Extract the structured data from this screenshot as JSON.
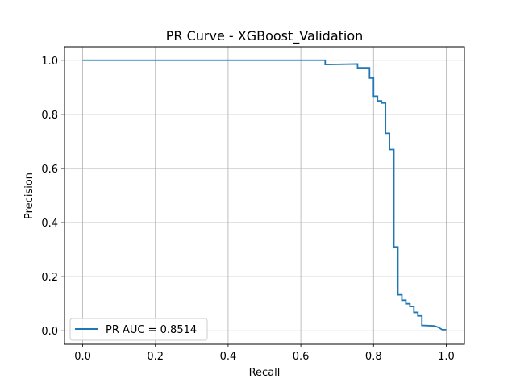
{
  "chart_data": {
    "type": "line",
    "title": "PR Curve - XGBoost_Validation",
    "xlabel": "Recall",
    "ylabel": "Precision",
    "xlim": [
      -0.05,
      1.05
    ],
    "ylim": [
      -0.05,
      1.05
    ],
    "xticks": [
      0.0,
      0.2,
      0.4,
      0.6,
      0.8,
      1.0
    ],
    "yticks": [
      0.0,
      0.2,
      0.4,
      0.6,
      0.8,
      1.0
    ],
    "xtick_labels": [
      "0.0",
      "0.2",
      "0.4",
      "0.6",
      "0.8",
      "1.0"
    ],
    "ytick_labels": [
      "0.0",
      "0.2",
      "0.4",
      "0.6",
      "0.8",
      "1.0"
    ],
    "grid": true,
    "legend_position": "lower-left",
    "series": [
      {
        "name": "PR AUC = 0.8514",
        "color": "#1f77b4",
        "x": [
          0.0,
          0.667,
          0.667,
          0.756,
          0.756,
          0.789,
          0.789,
          0.8,
          0.8,
          0.811,
          0.811,
          0.822,
          0.822,
          0.833,
          0.833,
          0.844,
          0.844,
          0.856,
          0.856,
          0.867,
          0.867,
          0.878,
          0.878,
          0.889,
          0.889,
          0.9,
          0.9,
          0.911,
          0.911,
          0.922,
          0.922,
          0.933,
          0.933,
          0.967,
          0.967,
          0.978,
          0.978,
          0.989,
          0.989,
          1.0
        ],
        "y": [
          1.0,
          1.0,
          0.984,
          0.986,
          0.972,
          0.972,
          0.934,
          0.934,
          0.867,
          0.867,
          0.85,
          0.85,
          0.842,
          0.842,
          0.73,
          0.73,
          0.67,
          0.67,
          0.31,
          0.31,
          0.133,
          0.133,
          0.113,
          0.113,
          0.1,
          0.1,
          0.09,
          0.09,
          0.068,
          0.068,
          0.055,
          0.055,
          0.02,
          0.018,
          0.018,
          0.013,
          0.013,
          0.004,
          0.004,
          0.004
        ]
      }
    ]
  }
}
